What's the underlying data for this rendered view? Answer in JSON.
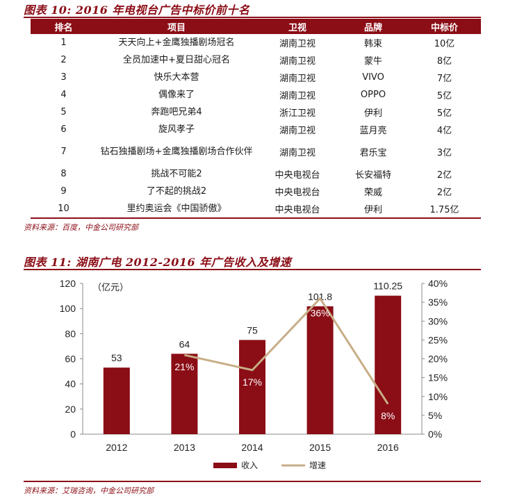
{
  "table_title": "图表 10: 2016 年电视台广告中标价前十名",
  "table": {
    "headers": [
      "排名",
      "项目",
      "卫视",
      "品牌",
      "中标价"
    ],
    "rows": [
      [
        "1",
        "天天向上+金鹰独播剧场冠名",
        "湖南卫视",
        "韩束",
        "10亿"
      ],
      [
        "2",
        "全员加速中+夏日甜心冠名",
        "湖南卫视",
        "蒙牛",
        "8亿"
      ],
      [
        "3",
        "快乐大本营",
        "湖南卫视",
        "VIVO",
        "7亿"
      ],
      [
        "4",
        "偶像来了",
        "湖南卫视",
        "OPPO",
        "5亿"
      ],
      [
        "5",
        "奔跑吧兄弟4",
        "浙江卫视",
        "伊利",
        "5亿"
      ],
      [
        "6",
        "旋风孝子",
        "湖南卫视",
        "蓝月亮",
        "4亿"
      ],
      [
        "7",
        "钻石独播剧场+金鹰独播剧场合作伙伴",
        "湖南卫视",
        "君乐宝",
        "3亿"
      ],
      [
        "8",
        "挑战不可能2",
        "中央电视台",
        "长安福特",
        "2亿"
      ],
      [
        "9",
        "了不起的挑战2",
        "中央电视台",
        "荣威",
        "2亿"
      ],
      [
        "10",
        "里约奥运会《中国骄傲》",
        "中央电视台",
        "伊利",
        "1.75亿"
      ]
    ]
  },
  "table_source": "资料来源：百度，中金公司研究部",
  "chart_title": "图表 11: 湖南广电 2012-2016 年广告收入及增速",
  "chart_data": {
    "type": "bar",
    "title": "湖南广电 2012-2016 年广告收入及增速",
    "unit_label": "（亿元）",
    "categories": [
      "2012",
      "2013",
      "2014",
      "2015",
      "2016"
    ],
    "series": [
      {
        "name": "收入",
        "type": "bar",
        "axis": "left",
        "color": "#8b0d16",
        "values": [
          53,
          64,
          75,
          101.8,
          110.25
        ],
        "labels": [
          "53",
          "64",
          "75",
          "101.8",
          "110.25"
        ]
      },
      {
        "name": "增速",
        "type": "line",
        "axis": "right",
        "color": "#c8ad86",
        "values": [
          null,
          21,
          17,
          36,
          8
        ],
        "labels": [
          "",
          "21%",
          "17%",
          "36%",
          "8%"
        ]
      }
    ],
    "y_left": {
      "min": 0,
      "max": 120,
      "ticks": [
        0,
        20,
        40,
        60,
        80,
        100,
        120
      ]
    },
    "y_right": {
      "min": 0,
      "max": 40,
      "ticks": [
        "0%",
        "5%",
        "10%",
        "15%",
        "20%",
        "25%",
        "30%",
        "35%",
        "40%"
      ]
    },
    "legend": [
      "收入",
      "增速"
    ],
    "legend_position": "bottom"
  },
  "chart_source": "资料来源：艾瑞咨询，中金公司研究部"
}
